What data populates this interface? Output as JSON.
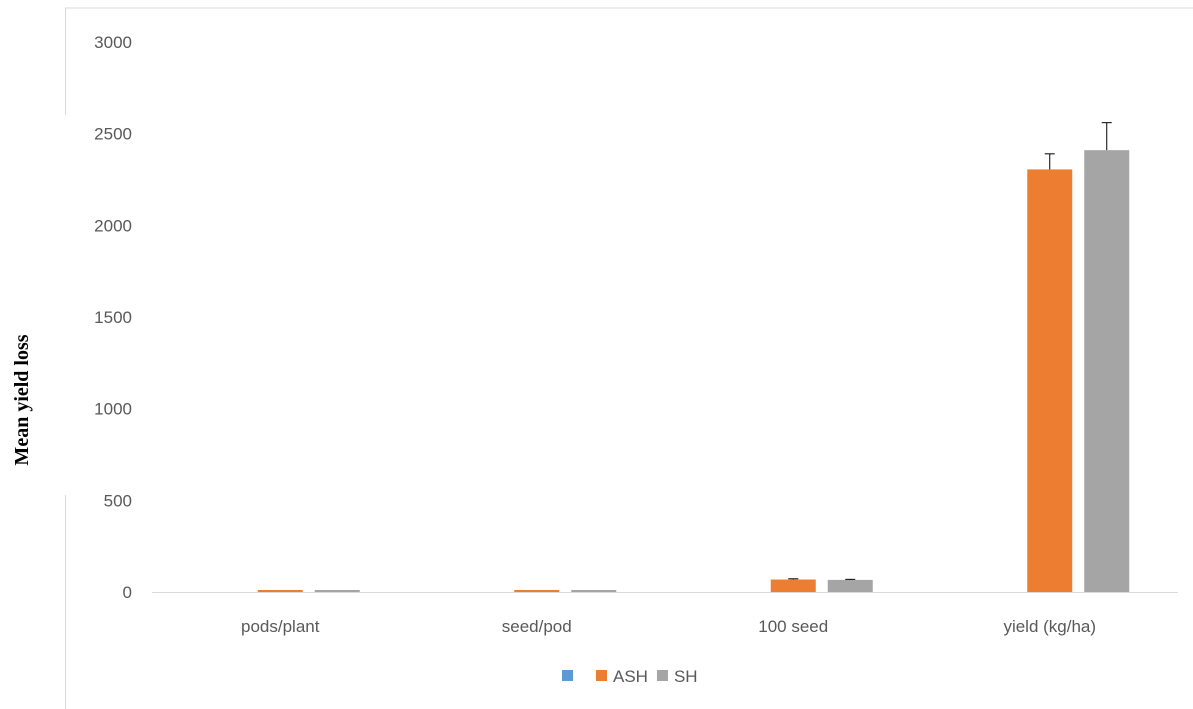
{
  "chart_data": {
    "type": "bar",
    "title": "",
    "xlabel": "",
    "ylabel": "Mean yield loss",
    "ylim": [
      0,
      3000
    ],
    "yticks": [
      0,
      500,
      1000,
      1500,
      2000,
      2500,
      3000
    ],
    "categories": [
      "pods/plant",
      "seed/pod",
      "100 seed",
      "yield (kg/ha)"
    ],
    "series": [
      {
        "name": "",
        "color": "#5B9BD5",
        "values": [
          0,
          0,
          0,
          0
        ],
        "errors": [
          0,
          0,
          0,
          0
        ]
      },
      {
        "name": "ASH",
        "color": "#ED7D31",
        "values": [
          8,
          6,
          68,
          2305
        ],
        "errors": [
          0,
          0,
          4,
          85
        ]
      },
      {
        "name": "SH",
        "color": "#A5A5A5",
        "values": [
          7,
          5,
          66,
          2410
        ],
        "errors": [
          0,
          0,
          3,
          150
        ]
      }
    ],
    "grid": false,
    "legend": "bottom-center"
  }
}
